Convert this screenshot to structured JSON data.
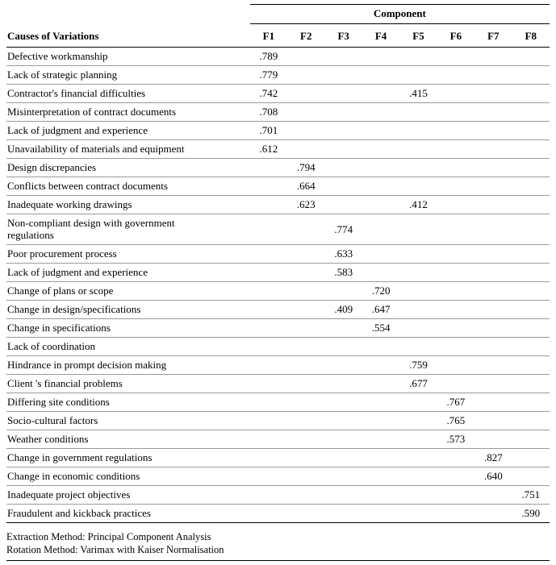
{
  "header": {
    "spanner": "Component",
    "row_label_header": "Causes of Variations",
    "columns": [
      "F1",
      "F2",
      "F3",
      "F4",
      "F5",
      "F6",
      "F7",
      "F8"
    ]
  },
  "table": {
    "rows": [
      {
        "label": "Defective workmanship",
        "values": [
          ".789",
          "",
          "",
          "",
          "",
          "",
          "",
          ""
        ]
      },
      {
        "label": "Lack of strategic planning",
        "values": [
          ".779",
          "",
          "",
          "",
          "",
          "",
          "",
          ""
        ]
      },
      {
        "label": "Contractor's financial difficulties",
        "values": [
          ".742",
          "",
          "",
          "",
          ".415",
          "",
          "",
          ""
        ]
      },
      {
        "label": "Misinterpretation of contract documents",
        "values": [
          ".708",
          "",
          "",
          "",
          "",
          "",
          "",
          ""
        ]
      },
      {
        "label": "Lack of judgment and experience",
        "values": [
          ".701",
          "",
          "",
          "",
          "",
          "",
          "",
          ""
        ]
      },
      {
        "label": "Unavailability of materials and equipment",
        "values": [
          ".612",
          "",
          "",
          "",
          "",
          "",
          "",
          ""
        ]
      },
      {
        "label": "Design discrepancies",
        "values": [
          "",
          ".794",
          "",
          "",
          "",
          "",
          "",
          ""
        ]
      },
      {
        "label": "Conflicts between contract documents",
        "values": [
          "",
          ".664",
          "",
          "",
          "",
          "",
          "",
          ""
        ]
      },
      {
        "label": "Inadequate working drawings",
        "values": [
          "",
          ".623",
          "",
          "",
          ".412",
          "",
          "",
          ""
        ]
      },
      {
        "label": "Non-compliant design with government regulations",
        "values": [
          "",
          "",
          ".774",
          "",
          "",
          "",
          "",
          ""
        ]
      },
      {
        "label": "Poor procurement process",
        "values": [
          "",
          "",
          ".633",
          "",
          "",
          "",
          "",
          ""
        ]
      },
      {
        "label": "Lack of judgment and experience",
        "values": [
          "",
          "",
          ".583",
          "",
          "",
          "",
          "",
          ""
        ]
      },
      {
        "label": "Change of plans or scope",
        "values": [
          "",
          "",
          "",
          ".720",
          "",
          "",
          "",
          ""
        ]
      },
      {
        "label": "Change in design/specifications",
        "values": [
          "",
          "",
          ".409",
          ".647",
          "",
          "",
          "",
          ""
        ]
      },
      {
        "label": "Change in specifications",
        "values": [
          "",
          "",
          "",
          ".554",
          "",
          "",
          "",
          ""
        ]
      },
      {
        "label": "Lack of coordination",
        "values": [
          "",
          "",
          "",
          "",
          "",
          "",
          "",
          ""
        ]
      },
      {
        "label": "Hindrance in prompt decision making",
        "values": [
          "",
          "",
          "",
          "",
          ".759",
          "",
          "",
          ""
        ]
      },
      {
        "label": "Client 's financial problems",
        "values": [
          "",
          "",
          "",
          "",
          ".677",
          "",
          "",
          ""
        ]
      },
      {
        "label": "Differing site conditions",
        "values": [
          "",
          "",
          "",
          "",
          "",
          ".767",
          "",
          ""
        ]
      },
      {
        "label": "Socio-cultural factors",
        "values": [
          "",
          "",
          "",
          "",
          "",
          ".765",
          "",
          ""
        ]
      },
      {
        "label": "Weather conditions",
        "values": [
          "",
          "",
          "",
          "",
          "",
          ".573",
          "",
          ""
        ]
      },
      {
        "label": "Change in government regulations",
        "values": [
          "",
          "",
          "",
          "",
          "",
          "",
          ".827",
          ""
        ]
      },
      {
        "label": "Change in economic conditions",
        "values": [
          "",
          "",
          "",
          "",
          "",
          "",
          ".640",
          ""
        ]
      },
      {
        "label": "Inadequate project objectives",
        "values": [
          "",
          "",
          "",
          "",
          "",
          "",
          "",
          ".751"
        ]
      },
      {
        "label": "Fraudulent and kickback practices",
        "values": [
          "",
          "",
          "",
          "",
          "",
          "",
          "",
          ".590"
        ]
      }
    ]
  },
  "footer": {
    "lines": [
      "Extraction Method: Principal Component Analysis",
      "Rotation Method: Varimax with Kaiser Normalisation"
    ]
  }
}
